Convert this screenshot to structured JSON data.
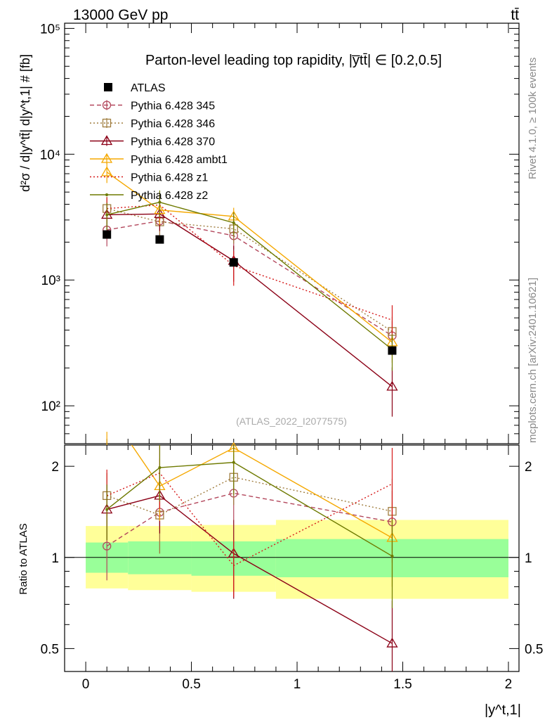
{
  "header": {
    "left": "13000 GeV pp",
    "right": "tt̄"
  },
  "side": {
    "rivet": "Rivet 4.1.0, ≥ 100k events",
    "mcplots": "mcplots.cern.ch [arXiv:2401.10621]"
  },
  "colors": {
    "atlas": "#000000",
    "p345": "#b3475c",
    "p346": "#a07d3f",
    "p370": "#8b0016",
    "ambt1": "#f5a800",
    "z1": "#d61a1a",
    "z2": "#6e7a00",
    "band_inner": "#99ff99",
    "band_outer": "#ffff99"
  },
  "chart_data": [
    {
      "type": "line",
      "title": "Parton-level leading top rapidity, |y̅tt̄| ∈ [0.2,0.5]",
      "ylabel": "d²σ / d|y^tt̄| d|y^t,1| # [fb]",
      "xlabel": "|y^t,1|",
      "yscale": "log",
      "xlim": [
        -0.1,
        2.05
      ],
      "ylim": [
        50,
        110000
      ],
      "yticks": [
        100,
        1000,
        10000,
        100000
      ],
      "yticklabels": [
        "10²",
        "10³",
        "10⁴",
        "10⁵"
      ],
      "watermark": "(ATLAS_2022_I2077575)",
      "x": [
        0.1,
        0.35,
        0.7,
        1.45
      ],
      "series": [
        {
          "name": "ATLAS",
          "key": "atlas",
          "marker": "square-filled",
          "dash": "none",
          "values": [
            2300,
            2100,
            1380,
            275
          ],
          "err": [
            0,
            0,
            0,
            0
          ]
        },
        {
          "name": "Pythia 6.428 345",
          "key": "p345",
          "marker": "circle",
          "dash": "dashed",
          "values": [
            2500,
            2950,
            2250,
            360
          ],
          "err": [
            650,
            800,
            500,
            110
          ]
        },
        {
          "name": "Pythia 6.428 346",
          "key": "p346",
          "marker": "square",
          "dash": "dotted",
          "values": [
            3700,
            2900,
            2550,
            390
          ],
          "err": [
            900,
            750,
            600,
            120
          ]
        },
        {
          "name": "Pythia 6.428 370",
          "key": "p370",
          "marker": "triangle",
          "dash": "none",
          "values": [
            3300,
            3350,
            1420,
            142
          ],
          "err": [
            800,
            900,
            450,
            60
          ]
        },
        {
          "name": "Pythia 6.428 ambt1",
          "key": "ambt1",
          "marker": "triangle",
          "dash": "none",
          "values": [
            7200,
            3600,
            3200,
            320
          ],
          "err": [
            1300,
            850,
            550,
            100
          ]
        },
        {
          "name": "Pythia 6.428 z1",
          "key": "z1",
          "marker": "none",
          "dash": "dotted",
          "values": [
            3700,
            3950,
            1300,
            480
          ],
          "err": [
            850,
            950,
            400,
            150
          ]
        },
        {
          "name": "Pythia 6.428 z2",
          "key": "z2",
          "marker": "dot",
          "dash": "none",
          "values": [
            3300,
            4150,
            2850,
            280
          ],
          "err": [
            800,
            1000,
            600,
            90
          ]
        }
      ]
    },
    {
      "type": "line",
      "ylabel": "Ratio to ATLAS",
      "xlabel": "|y^t,1|",
      "yscale": "log",
      "xlim": [
        -0.1,
        2.05
      ],
      "ylim": [
        0.42,
        2.35
      ],
      "yticks": [
        0.5,
        1,
        2
      ],
      "yticklabels": [
        "0.5",
        "1",
        "2"
      ],
      "xticks": [
        0,
        0.5,
        1,
        1.5,
        2
      ],
      "xticklabels": [
        "0",
        "0.5",
        "1",
        "1.5",
        "2"
      ],
      "bands": {
        "edges": [
          0,
          0.2,
          0.5,
          0.9,
          2.0
        ],
        "inner": [
          [
            0.89,
            1.12
          ],
          [
            0.88,
            1.13
          ],
          [
            0.87,
            1.13
          ],
          [
            0.86,
            1.15
          ]
        ],
        "outer": [
          [
            0.79,
            1.27
          ],
          [
            0.78,
            1.27
          ],
          [
            0.77,
            1.28
          ],
          [
            0.73,
            1.33
          ]
        ]
      },
      "x": [
        0.1,
        0.35,
        0.7,
        1.45
      ],
      "series": [
        {
          "name": "Pythia 6.428 345",
          "key": "p345",
          "marker": "circle",
          "dash": "dashed",
          "values": [
            1.09,
            1.41,
            1.63,
            1.31
          ],
          "err": [
            0.25,
            0.38,
            0.3,
            0.35
          ]
        },
        {
          "name": "Pythia 6.428 346",
          "key": "p346",
          "marker": "square",
          "dash": "dotted",
          "values": [
            1.6,
            1.38,
            1.84,
            1.42
          ],
          "err": [
            0.3,
            0.35,
            0.35,
            0.4
          ]
        },
        {
          "name": "Pythia 6.428 370",
          "key": "p370",
          "marker": "triangle",
          "dash": "none",
          "values": [
            1.44,
            1.6,
            1.03,
            0.52
          ],
          "err": [
            0.3,
            0.4,
            0.3,
            0.2
          ]
        },
        {
          "name": "Pythia 6.428 ambt1",
          "key": "ambt1",
          "marker": "triangle",
          "dash": "none",
          "values": [
            3.1,
            1.72,
            2.3,
            1.16
          ],
          "err": [
            0.5,
            0.4,
            0.4,
            0.36
          ]
        },
        {
          "name": "Pythia 6.428 z1",
          "key": "z1",
          "marker": "none",
          "dash": "dotted",
          "values": [
            1.6,
            1.9,
            0.94,
            1.75
          ],
          "err": [
            0.35,
            0.45,
            0.2,
            0.55
          ]
        },
        {
          "name": "Pythia 6.428 z2",
          "key": "z2",
          "marker": "dot",
          "dash": "none",
          "values": [
            1.44,
            1.98,
            2.06,
            1.01
          ],
          "err": [
            0.3,
            0.45,
            0.45,
            0.33
          ]
        }
      ]
    }
  ]
}
